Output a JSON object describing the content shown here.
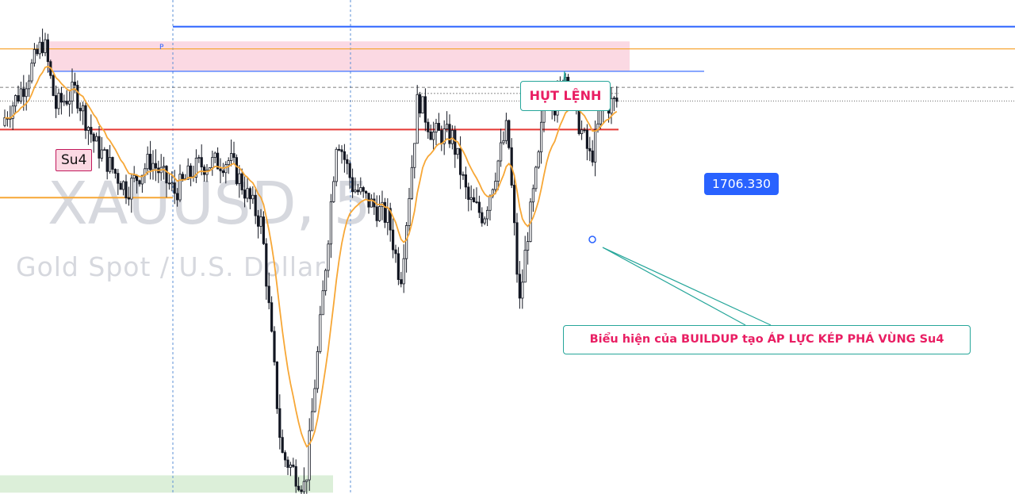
{
  "chart_data": {
    "type": "candlestick",
    "symbol_watermark": "XAUUSD, 5",
    "description_watermark": "Gold Spot / U.S. Dollar",
    "price_label": "1706.330",
    "ylim": [
      1690.5,
      1709.0
    ],
    "levels": [
      {
        "role": "blue-line-P",
        "price": 1708.0,
        "color": "#2962ff"
      },
      {
        "role": "orange-upper",
        "price": 1707.17,
        "color": "#f7a736"
      },
      {
        "role": "su4-blue",
        "price": 1706.33,
        "color": "#2962ff"
      },
      {
        "role": "dashed",
        "price": 1705.73,
        "color": "#555555"
      },
      {
        "role": "dotted",
        "price": 1705.22,
        "color": "#555555"
      },
      {
        "role": "red-line",
        "price": 1704.15,
        "color": "#e53935"
      },
      {
        "role": "orange-lower",
        "price": 1701.6,
        "color": "#f7a736"
      }
    ],
    "zones": [
      {
        "label": "Su4",
        "top": 1707.45,
        "bottom": 1706.35,
        "color": "#fbd9e3"
      },
      {
        "label": "",
        "top": 1691.2,
        "bottom": 1690.55,
        "color": "#dcefd9"
      }
    ],
    "annotations": [
      "HỤT LỆNH",
      "Biểu hiện của BUILDUP tạo ÁP LỰC KÉP PHÁ VÙNG Su4"
    ],
    "candles_key_prices": {
      "start": 1704.3,
      "high_left": 1707.5,
      "low": 1690.75,
      "mid_peak": 1704.0,
      "right_peak": 1706.33,
      "end": 1705.2
    },
    "line_color_ema": "#f7a736"
  },
  "labels": {
    "su4": "Su4",
    "callout_top": "HỤT LỆNH",
    "callout_bottom": "Biểu hiện của BUILDUP tạo ÁP LỰC KÉP PHÁ VÙNG Su4",
    "price_badge": "1706.330",
    "p_marker": "P",
    "watermark_symbol": "XAUUSD, 5",
    "watermark_desc": "Gold Spot / U.S. Dollar"
  }
}
